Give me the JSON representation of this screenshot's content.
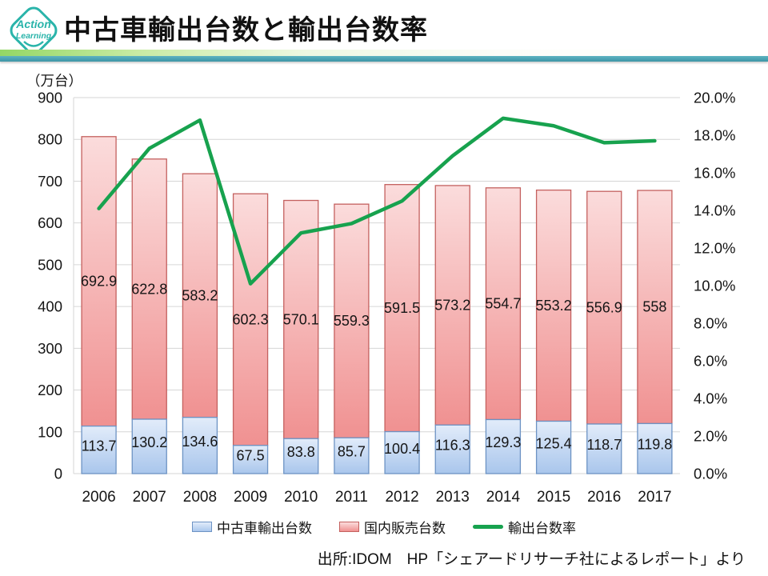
{
  "header": {
    "title": "中古車輸出台数と輸出台数率",
    "logo": {
      "line1": "Action",
      "line2": "Learning"
    }
  },
  "chart_data": {
    "type": "combo",
    "title": "中古車輸出台数と輸出台数率",
    "unit_label": "（万台）",
    "categories": [
      "2006",
      "2007",
      "2008",
      "2009",
      "2010",
      "2011",
      "2012",
      "2013",
      "2014",
      "2015",
      "2016",
      "2017"
    ],
    "series": [
      {
        "name": "中古車輸出台数",
        "type": "bar",
        "axis": "left",
        "values": [
          113.7,
          130.2,
          134.6,
          67.5,
          83.8,
          85.7,
          100.4,
          116.3,
          129.3,
          125.4,
          118.7,
          119.8
        ],
        "fill_top": "#e2ecfa",
        "fill_bottom": "#a9c6ec",
        "border": "#6d93c4"
      },
      {
        "name": "国内販売台数",
        "type": "bar",
        "axis": "left",
        "values": [
          692.9,
          622.8,
          583.2,
          602.3,
          570.1,
          559.3,
          591.5,
          573.2,
          554.7,
          553.2,
          556.9,
          558
        ],
        "fill_top": "#fbdcdc",
        "fill_bottom": "#f09191",
        "border": "#c4615f"
      },
      {
        "name": "輸出台数率",
        "type": "line",
        "axis": "right",
        "values": [
          14.1,
          17.3,
          18.8,
          10.1,
          12.8,
          13.3,
          14.5,
          16.9,
          18.9,
          18.5,
          17.6,
          17.7
        ],
        "color": "#17a24e"
      }
    ],
    "left_axis": {
      "min": 0,
      "max": 900,
      "tick_step": 100,
      "tick_labels": [
        "0",
        "100",
        "200",
        "300",
        "400",
        "500",
        "600",
        "700",
        "800",
        "900"
      ]
    },
    "right_axis": {
      "min": 0,
      "max": 20,
      "tick_step": 2,
      "tick_labels": [
        "0.0%",
        "2.0%",
        "4.0%",
        "6.0%",
        "8.0%",
        "10.0%",
        "12.0%",
        "14.0%",
        "16.0%",
        "18.0%",
        "20.0%"
      ]
    },
    "grid": true,
    "legend_position": "bottom",
    "gridline_color": "#d6d6d6"
  },
  "legend": {
    "items": [
      {
        "label": "中古車輸出台数",
        "swatch": "bar-blue"
      },
      {
        "label": "国内販売台数",
        "swatch": "bar-pink"
      },
      {
        "label": "輸出台数率",
        "swatch": "line-green"
      }
    ]
  },
  "source": {
    "text": "出所:IDOM　HP「シェアードリサーチ社によるレポート」より"
  },
  "colors": {
    "accent_teal": "#2ab4aa",
    "divider_teal": "#4aa3b2",
    "line_green": "#17a24e"
  }
}
